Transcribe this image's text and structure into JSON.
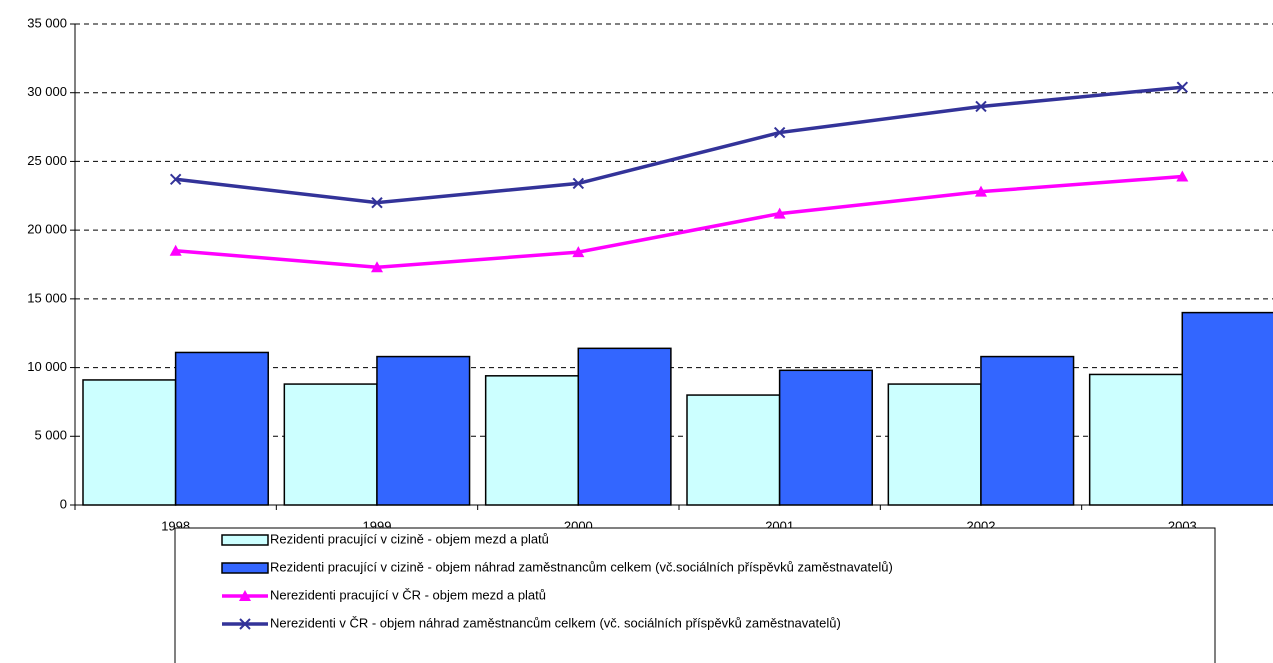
{
  "chart_data": {
    "type": "bar-line",
    "categories": [
      "1998",
      "1999",
      "2000",
      "2001",
      "2002",
      "2003"
    ],
    "series": [
      {
        "name": "Rezidenti pracující v cizině - objem mezd a platů",
        "type": "bar",
        "color": "#ccffff",
        "values": [
          9100,
          8800,
          9400,
          8000,
          8800,
          9500
        ]
      },
      {
        "name": "Rezidenti pracující v cizině - objem náhrad zaměstnancům celkem (vč.sociálních příspěvků zaměstnavatelů)",
        "type": "bar",
        "color": "#3366ff",
        "values": [
          11100,
          10800,
          11400,
          9800,
          10800,
          14000
        ]
      },
      {
        "name": "Nerezidenti pracující v ČR - objem mezd a platů",
        "type": "line",
        "marker": "triangle",
        "color": "#ff00ff",
        "values": [
          18500,
          17300,
          18400,
          21200,
          22800,
          23900
        ]
      },
      {
        "name": "Nerezidenti v ČR - objem náhrad zaměstnancům celkem (vč. sociálních příspěvků zaměstnavatelů)",
        "type": "line",
        "marker": "x",
        "color": "#333399",
        "values": [
          23700,
          22000,
          23400,
          27100,
          29000,
          30400
        ]
      }
    ],
    "ylim": [
      0,
      35000
    ],
    "yticks": [
      0,
      {
        "value": 5000,
        "label": "5 000"
      },
      {
        "value": 10000,
        "label": "10 000"
      },
      {
        "value": 15000,
        "label": "15 000"
      },
      {
        "value": 20000,
        "label": "20 000"
      },
      {
        "value": 25000,
        "label": "25 000"
      },
      {
        "value": 30000,
        "label": "30 000"
      },
      {
        "value": 35000,
        "label": "35 000"
      }
    ],
    "grid": true,
    "legend": "bottom"
  }
}
